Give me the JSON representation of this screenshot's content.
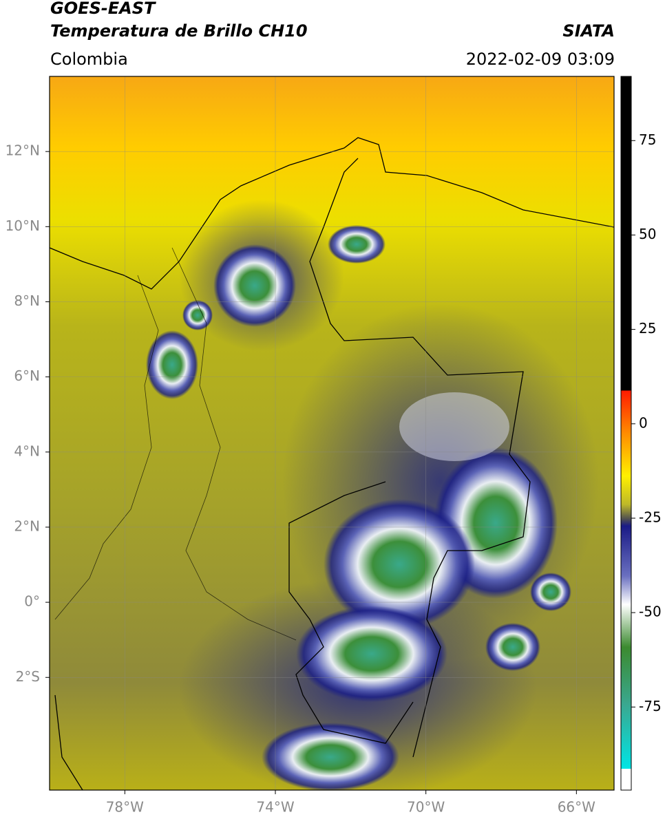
{
  "map": {
    "title": "GOES-EAST",
    "subtitle": "Temperatura de Brillo CH10",
    "source": "SIATA",
    "region": "Colombia",
    "datetime": "2022-02-09 03:09",
    "xlim": [
      -80,
      -65
    ],
    "ylim": [
      -5,
      14
    ],
    "xticks": [
      {
        "value": -78,
        "label": "78°W"
      },
      {
        "value": -74,
        "label": "74°W"
      },
      {
        "value": -70,
        "label": "70°W"
      },
      {
        "value": -66,
        "label": "66°W"
      }
    ],
    "yticks": [
      {
        "value": 12,
        "label": "12°N"
      },
      {
        "value": 10,
        "label": "10°N"
      },
      {
        "value": 8,
        "label": "8°N"
      },
      {
        "value": 6,
        "label": "6°N"
      },
      {
        "value": 4,
        "label": "4°N"
      },
      {
        "value": 2,
        "label": "2°N"
      },
      {
        "value": 0,
        "label": "0°"
      },
      {
        "value": -2,
        "label": "2°S"
      }
    ],
    "grid": true,
    "colorbar": {
      "clim": [
        -97,
        92
      ],
      "ticks": [
        75,
        50,
        25,
        0,
        -25,
        -50,
        -75
      ]
    }
  }
}
